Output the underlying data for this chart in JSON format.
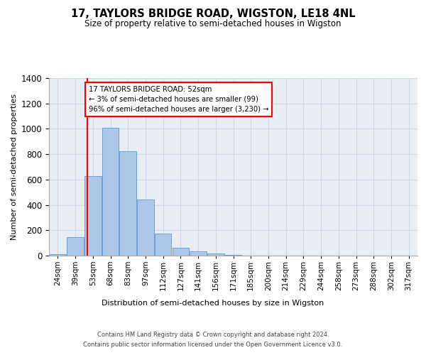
{
  "title1": "17, TAYLORS BRIDGE ROAD, WIGSTON, LE18 4NL",
  "title2": "Size of property relative to semi-detached houses in Wigston",
  "xlabel": "Distribution of semi-detached houses by size in Wigston",
  "ylabel": "Number of semi-detached properties",
  "categories": [
    "24sqm",
    "39sqm",
    "53sqm",
    "68sqm",
    "83sqm",
    "97sqm",
    "112sqm",
    "127sqm",
    "141sqm",
    "156sqm",
    "171sqm",
    "185sqm",
    "200sqm",
    "214sqm",
    "229sqm",
    "244sqm",
    "258sqm",
    "273sqm",
    "288sqm",
    "302sqm",
    "317sqm"
  ],
  "values": [
    10,
    145,
    630,
    1010,
    825,
    445,
    175,
    60,
    33,
    15,
    5,
    2,
    1,
    0,
    0,
    0,
    0,
    0,
    0,
    0,
    0
  ],
  "bar_color": "#aec6e8",
  "bar_edge_color": "#5b9bd5",
  "annotation_box_color": "white",
  "annotation_box_edge": "red",
  "vline_color": "red",
  "grid_color": "#d0d8e8",
  "background_color": "#e8eef5",
  "ylim": [
    0,
    1400
  ],
  "yticks": [
    0,
    200,
    400,
    600,
    800,
    1000,
    1200,
    1400
  ],
  "footer1": "Contains HM Land Registry data © Crown copyright and database right 2024.",
  "footer2": "Contains public sector information licensed under the Open Government Licence v3.0."
}
